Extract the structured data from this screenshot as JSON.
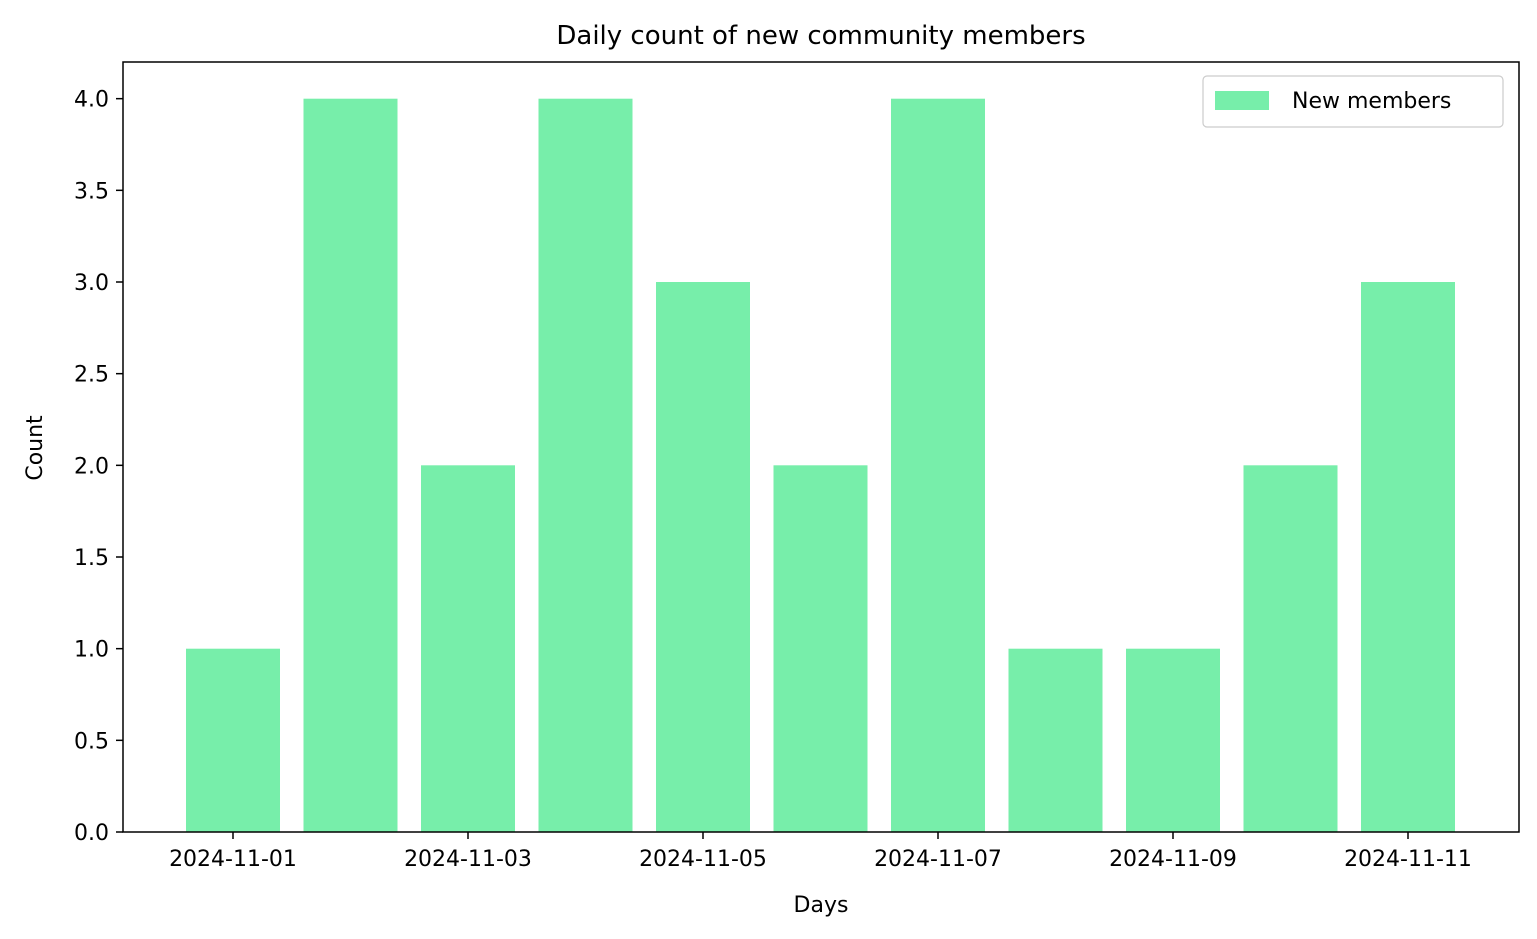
{
  "chart_data": {
    "type": "bar",
    "title": "Daily count of new community members",
    "xlabel": "Days",
    "ylabel": "Count",
    "categories": [
      "2024-11-01",
      "2024-11-02",
      "2024-11-03",
      "2024-11-04",
      "2024-11-05",
      "2024-11-06",
      "2024-11-07",
      "2024-11-08",
      "2024-11-09",
      "2024-11-10",
      "2024-11-11"
    ],
    "series": [
      {
        "name": "New members",
        "values": [
          1,
          4,
          2,
          4,
          3,
          2,
          4,
          1,
          1,
          2,
          3
        ],
        "color": "#77eeaa"
      }
    ],
    "x_tick_labels": [
      "2024-11-01",
      "2024-11-03",
      "2024-11-05",
      "2024-11-07",
      "2024-11-09",
      "2024-11-11"
    ],
    "y_tick_labels": [
      "0.0",
      "0.5",
      "1.0",
      "1.5",
      "2.0",
      "2.5",
      "3.0",
      "3.5",
      "4.0"
    ],
    "ylim": [
      0,
      4.2
    ],
    "grid": false,
    "legend_position": "top-right"
  }
}
